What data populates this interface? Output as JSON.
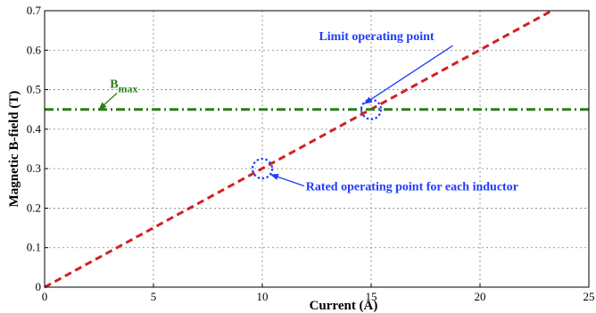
{
  "chart_data": {
    "type": "line",
    "title": "",
    "xlabel": "Current (A)",
    "ylabel": "Magnetic B-field (T)",
    "xlim": [
      0,
      25
    ],
    "ylim": [
      0,
      0.7
    ],
    "xticks": [
      0,
      5,
      10,
      15,
      20,
      25
    ],
    "yticks": [
      0,
      0.1,
      0.2,
      0.3,
      0.4,
      0.5,
      0.6,
      0.7
    ],
    "xtick_labels": [
      "0",
      "5",
      "10",
      "15",
      "20",
      "25"
    ],
    "ytick_labels": [
      "0",
      "0.1",
      "0.2",
      "0.3",
      "0.4",
      "0.5",
      "0.6",
      "0.7"
    ],
    "grid": true,
    "series": [
      {
        "style": "dashed",
        "color": "#d42020",
        "x": [
          0,
          23.3
        ],
        "y": [
          0,
          0.7
        ]
      },
      {
        "style": "dash-dot",
        "color": "#2e7d1a",
        "x": [
          0,
          25
        ],
        "y": [
          0.45,
          0.45
        ]
      }
    ],
    "markers": [
      {
        "x": 10,
        "y": 0.3,
        "style": "dotted-circle",
        "color": "#1f3cff"
      },
      {
        "x": 15,
        "y": 0.45,
        "style": "dotted-circle",
        "color": "#1f3cff"
      }
    ],
    "annotations": [
      {
        "id": "bmax",
        "text": "B",
        "subscript": "max",
        "color": "#2e7d1a",
        "x": 3.0,
        "y": 0.505,
        "arrow_to": [
          2.5,
          0.45
        ]
      },
      {
        "id": "limit",
        "text": "Limit operating point",
        "color": "#1f3cff",
        "x": 12.6,
        "y": 0.625,
        "arrow_to": [
          14.7,
          0.465
        ]
      },
      {
        "id": "rated",
        "text": "Rated operating point for each inductor",
        "color": "#1f3cff",
        "x": 12.0,
        "y": 0.245,
        "arrow_to": [
          10.4,
          0.285
        ]
      }
    ]
  }
}
